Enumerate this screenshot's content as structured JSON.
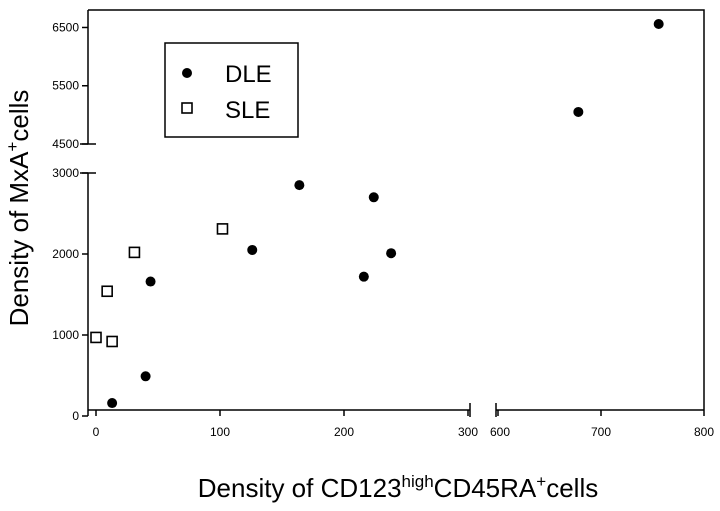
{
  "chart_data": {
    "type": "scatter",
    "xlabel": {
      "pre": "Density of CD123",
      "sup1": "high",
      "mid": "CD45RA",
      "sup2": "+",
      "post": "cells"
    },
    "ylabel": {
      "pre": "Density of MxA",
      "sup": "+",
      "post": "cells"
    },
    "x_axis": {
      "segments": [
        {
          "range": [
            0,
            300
          ],
          "ticks": [
            0,
            100,
            200,
            300
          ]
        },
        {
          "range": [
            600,
            800
          ],
          "ticks": [
            600,
            700,
            800
          ]
        }
      ]
    },
    "y_axis": {
      "segments": [
        {
          "range": [
            0,
            3000
          ],
          "ticks": [
            0,
            1000,
            2000,
            3000
          ]
        },
        {
          "range": [
            4500,
            6800
          ],
          "ticks": [
            4500,
            5500,
            6500
          ]
        }
      ]
    },
    "grid": false,
    "legend_position": "top-left",
    "series": [
      {
        "name": "DLE",
        "marker": "filled-circle",
        "points": [
          {
            "x": 13,
            "y": 160
          },
          {
            "x": 40,
            "y": 490
          },
          {
            "x": 44,
            "y": 1660
          },
          {
            "x": 126,
            "y": 2050
          },
          {
            "x": 164,
            "y": 2850
          },
          {
            "x": 216,
            "y": 1720
          },
          {
            "x": 224,
            "y": 2700
          },
          {
            "x": 238,
            "y": 2010
          },
          {
            "x": 678,
            "y": 5050
          },
          {
            "x": 756,
            "y": 6560
          }
        ]
      },
      {
        "name": "SLE",
        "marker": "open-square",
        "points": [
          {
            "x": 0,
            "y": 970
          },
          {
            "x": 9,
            "y": 1540
          },
          {
            "x": 13,
            "y": 920
          },
          {
            "x": 31,
            "y": 2020
          },
          {
            "x": 102,
            "y": 2310
          }
        ]
      }
    ]
  }
}
